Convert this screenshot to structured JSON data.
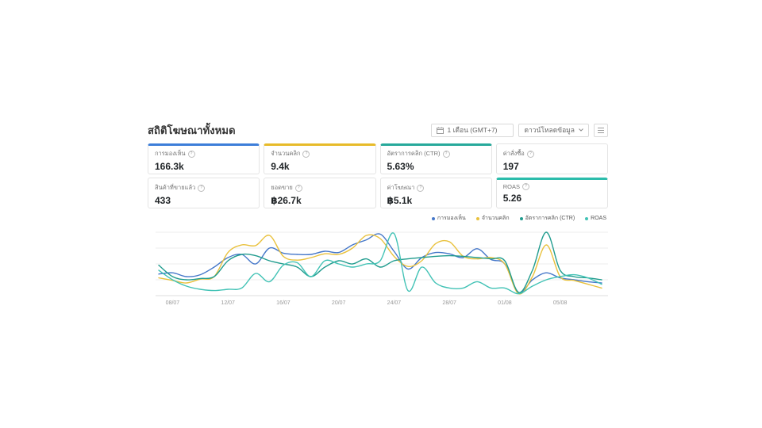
{
  "header": {
    "title": "สถิติโฆษณาทั้งหมด",
    "date_range": {
      "label": "1 เดือน (GMT+7)",
      "icon": "calendar"
    },
    "download_button": {
      "label": "ดาวน์โหลดข้อมูล",
      "icon": "chevron-down"
    },
    "menu_button": {
      "icon": "hamburger"
    }
  },
  "cards": [
    {
      "label": "การมองเห็น",
      "value": "166.3k",
      "accent": "#3d7ed9"
    },
    {
      "label": "จำนวนคลิก",
      "value": "9.4k",
      "accent": "#e7bb2a"
    },
    {
      "label": "อัตราการคลิก (CTR)",
      "value": "5.63%",
      "accent": "#27a99b"
    },
    {
      "label": "ค่าสั่งซื้อ",
      "value": "197",
      "accent": null
    },
    {
      "label": "สินค้าที่ขายแล้ว",
      "value": "433",
      "accent": null
    },
    {
      "label": "ยอดขาย",
      "value": "฿26.7k",
      "accent": null
    },
    {
      "label": "ค่าโฆษณา",
      "value": "฿5.1k",
      "accent": null
    },
    {
      "label": "ROAS",
      "value": "5.26",
      "accent": "#2cbcab"
    }
  ],
  "chart_data": {
    "type": "line",
    "title": "",
    "xlabel": "",
    "ylabel": "",
    "ylim": [
      0,
      100
    ],
    "grid": "horizontal",
    "y_axis_labels_shown": false,
    "legend_position": "top-right",
    "x_tick_labels": [
      "08/07",
      "12/07",
      "16/07",
      "20/07",
      "24/07",
      "28/07",
      "01/08",
      "05/08"
    ],
    "x_tick_indices": [
      1,
      5,
      9,
      13,
      17,
      21,
      25,
      29
    ],
    "n_points": 33,
    "grid_color": "#ededed",
    "axis_color": "#dcdcdc",
    "tick_color": "#999999",
    "series": [
      {
        "name": "การมองเห็น",
        "color": "#4577c9",
        "values": [
          34,
          36,
          30,
          33,
          45,
          60,
          65,
          50,
          75,
          67,
          65,
          65,
          70,
          68,
          80,
          88,
          97,
          70,
          42,
          60,
          68,
          66,
          60,
          74,
          57,
          50,
          5,
          25,
          36,
          28,
          25,
          22,
          20
        ]
      },
      {
        "name": "จำนวนคลิก",
        "color": "#e9c13c",
        "values": [
          28,
          24,
          20,
          26,
          30,
          68,
          80,
          79,
          95,
          62,
          56,
          60,
          66,
          65,
          75,
          95,
          90,
          62,
          46,
          55,
          82,
          85,
          62,
          58,
          60,
          50,
          3,
          30,
          80,
          30,
          24,
          18,
          12
        ]
      },
      {
        "name": "อัตราการคลิก (CTR)",
        "color": "#209c8e",
        "values": [
          48,
          30,
          25,
          27,
          30,
          55,
          65,
          63,
          55,
          50,
          45,
          30,
          45,
          55,
          50,
          58,
          45,
          55,
          58,
          60,
          62,
          63,
          62,
          60,
          58,
          55,
          5,
          40,
          100,
          40,
          30,
          28,
          25
        ]
      },
      {
        "name": "ROAS",
        "color": "#41c2b5",
        "values": [
          40,
          25,
          15,
          10,
          8,
          10,
          12,
          35,
          22,
          48,
          52,
          30,
          55,
          50,
          45,
          50,
          55,
          98,
          8,
          45,
          20,
          12,
          12,
          22,
          12,
          12,
          3,
          15,
          25,
          30,
          33,
          28,
          18
        ]
      }
    ]
  }
}
